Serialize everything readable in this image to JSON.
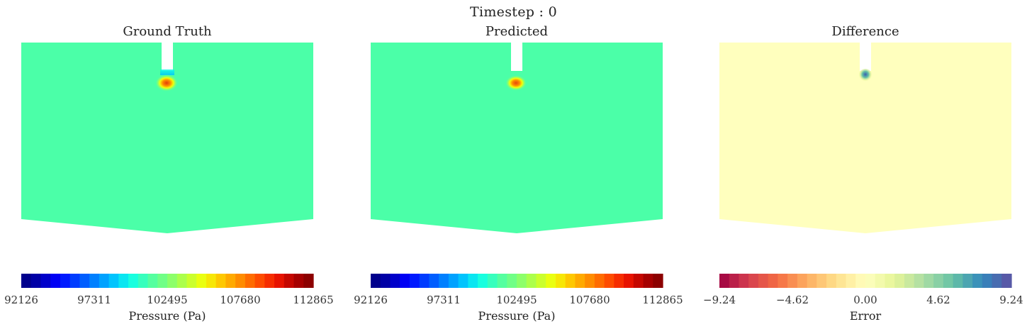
{
  "title": "Timestep : 0",
  "chart_data": [
    {
      "type": "heatmap",
      "title": "Ground Truth",
      "colormap": "jet",
      "colorbar": {
        "label": "Pressure (Pa)",
        "ticks": [
          "92126",
          "97311",
          "102495",
          "107680",
          "112865"
        ],
        "range": [
          92126,
          112865
        ]
      },
      "background_value": 102495,
      "background_color": "#4bffa8",
      "hotspot": {
        "peak_value": 111000,
        "peak_color": "#e0400a"
      }
    },
    {
      "type": "heatmap",
      "title": "Predicted",
      "colormap": "jet",
      "colorbar": {
        "label": "Pressure (Pa)",
        "ticks": [
          "92126",
          "97311",
          "102495",
          "107680",
          "112865"
        ],
        "range": [
          92126,
          112865
        ]
      },
      "background_value": 102495,
      "background_color": "#4bffa8",
      "hotspot": {
        "peak_value": 110500,
        "peak_color": "#e24a0e"
      }
    },
    {
      "type": "heatmap",
      "title": "Difference",
      "colormap": "Spectral",
      "colorbar": {
        "label": "Error",
        "ticks": [
          "−9.24",
          "−4.62",
          "0.00",
          "4.62",
          "9.24"
        ],
        "range": [
          -9.24,
          9.24
        ]
      },
      "background_value": 0.0,
      "background_color": "#ffffbe",
      "hotspot": {
        "peak_value": 8.0,
        "peak_color": "#3a62b0"
      }
    }
  ],
  "colors": {
    "jet": [
      "#00007f",
      "#0000b0",
      "#0000ff",
      "#0040ff",
      "#0080ff",
      "#00c0ff",
      "#10ffe8",
      "#4bffa8",
      "#7dff7a",
      "#b8ff3f",
      "#f2ff0a",
      "#ffc400",
      "#ff8c00",
      "#ff5000",
      "#f01600",
      "#b00000",
      "#7f0000"
    ],
    "spectral": [
      "#9e0142",
      "#d53e4f",
      "#f46d43",
      "#fdae61",
      "#fee08b",
      "#ffffbf",
      "#e6f598",
      "#abdda4",
      "#66c2a5",
      "#3288bd",
      "#5e4fa2"
    ]
  }
}
